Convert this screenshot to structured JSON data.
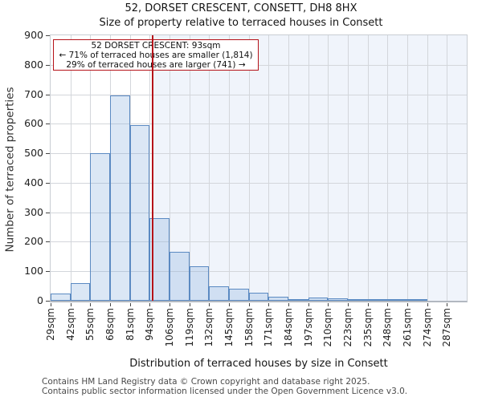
{
  "title": "52, DORSET CRESCENT, CONSETT, DH8 8HX",
  "subtitle": "Size of property relative to terraced houses in Consett",
  "annotation": {
    "line1": "52 DORSET CRESCENT: 93sqm",
    "line2": "← 71% of terraced houses are smaller (1,814)",
    "line3": "29% of terraced houses are larger (741) →"
  },
  "footer": {
    "line1": "Contains HM Land Registry data © Crown copyright and database right 2025.",
    "line2": "Contains public sector information licensed under the Open Government Licence v3.0."
  },
  "chart_data": {
    "type": "bar",
    "title": "52, DORSET CRESCENT, CONSETT, DH8 8HX",
    "subtitle": "Size of property relative to terraced houses in Consett",
    "xlabel": "Distribution of terraced houses by size in Consett",
    "ylabel": "Number of terraced properties",
    "categories": [
      "29sqm",
      "42sqm",
      "55sqm",
      "68sqm",
      "81sqm",
      "94sqm",
      "106sqm",
      "119sqm",
      "132sqm",
      "145sqm",
      "158sqm",
      "171sqm",
      "184sqm",
      "197sqm",
      "210sqm",
      "223sqm",
      "235sqm",
      "248sqm",
      "261sqm",
      "274sqm",
      "287sqm"
    ],
    "values": [
      25,
      60,
      500,
      697,
      595,
      281,
      166,
      118,
      48,
      40,
      26,
      14,
      6,
      10,
      7,
      4,
      3,
      3,
      2,
      0,
      0
    ],
    "bin_width_sqm": 13,
    "ylim": [
      0,
      900
    ],
    "ytick_step": 100,
    "grid": true,
    "marker": {
      "label": "93sqm",
      "value_sqm": 93,
      "smaller_count": "1,814",
      "smaller_pct": "71%",
      "larger_count": "741",
      "larger_pct": "29%"
    },
    "colors": {
      "bar_fill": "rgba(125,170,220,0.28)",
      "bar_border": "#5b8ac2",
      "marker_line": "#b51219",
      "annotation_border": "#b51219",
      "shade_region": "#f0f4fb",
      "gridline": "#d3d6db"
    }
  }
}
